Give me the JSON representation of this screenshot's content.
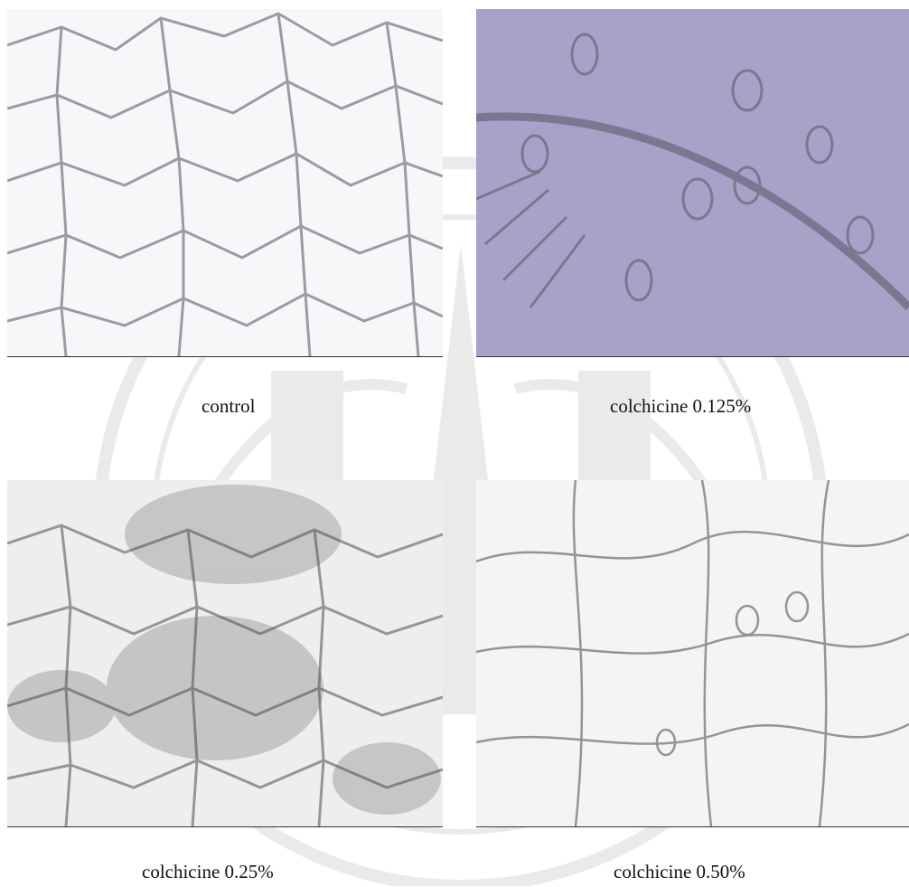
{
  "panels": [
    {
      "caption": "control",
      "tone": "#f7f6f8",
      "cell_color": "#6f6a7a"
    },
    {
      "caption": "colchicine 0.125%",
      "tone": "#a7a3c8",
      "cell_color": "#5d5a6e"
    },
    {
      "caption": "colchicine 0.25%",
      "tone": "#efeeee",
      "cell_color": "#4f4c52"
    },
    {
      "caption": "colchicine 0.50%",
      "tone": "#f4f4f4",
      "cell_color": "#55535a"
    }
  ],
  "watermark": {
    "icon": "university-seal-icon",
    "color": "#8a8f88"
  }
}
